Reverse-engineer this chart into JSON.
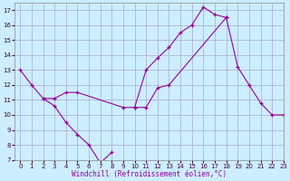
{
  "bg_color": "#cceeff",
  "grid_color": "#aaaacc",
  "line_color": "#990099",
  "xlabel": "Windchill (Refroidissement éolien,°C)",
  "xlim": [
    -0.5,
    23
  ],
  "ylim": [
    7,
    17.5
  ],
  "xticks": [
    0,
    1,
    2,
    3,
    4,
    5,
    6,
    7,
    8,
    9,
    10,
    11,
    12,
    13,
    14,
    15,
    16,
    17,
    18,
    19,
    20,
    21,
    22,
    23
  ],
  "yticks": [
    7,
    8,
    9,
    10,
    11,
    12,
    13,
    14,
    15,
    16,
    17
  ],
  "curves": [
    [
      [
        0,
        13
      ],
      [
        1,
        12
      ],
      [
        2,
        11.1
      ],
      [
        3,
        10.6
      ],
      [
        4,
        9.5
      ],
      [
        5,
        8.7
      ],
      [
        6,
        8.0
      ],
      [
        7,
        6.8
      ],
      [
        8,
        7.5
      ]
    ],
    [
      [
        2,
        11.1
      ],
      [
        3,
        11.1
      ],
      [
        4,
        11.5
      ],
      [
        5,
        11.5
      ],
      [
        9,
        10.5
      ],
      [
        10,
        10.5
      ],
      [
        11,
        13.0
      ],
      [
        12,
        13.8
      ],
      [
        13,
        14.5
      ],
      [
        14,
        15.5
      ],
      [
        15,
        16.0
      ],
      [
        16,
        17.2
      ],
      [
        17,
        16.7
      ],
      [
        18,
        16.5
      ]
    ],
    [
      [
        10,
        10.5
      ],
      [
        11,
        10.5
      ],
      [
        12,
        11.8
      ],
      [
        13,
        12.0
      ],
      [
        18,
        16.5
      ],
      [
        19,
        13.2
      ],
      [
        20,
        12.0
      ],
      [
        21,
        10.8
      ],
      [
        22,
        10.0
      ],
      [
        23,
        10.0
      ]
    ]
  ],
  "xlabel_color": "#990099",
  "tick_fontsize": 5,
  "xlabel_fontsize": 5.5
}
